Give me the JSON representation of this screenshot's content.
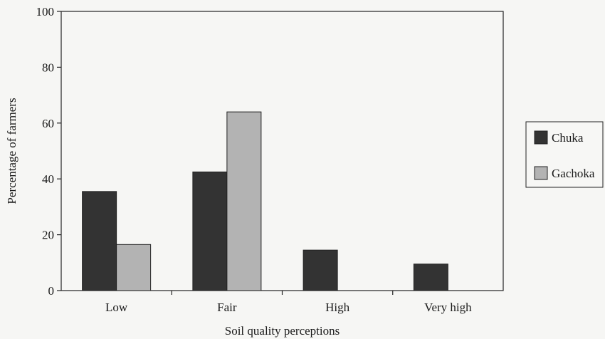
{
  "chart_data": {
    "type": "bar",
    "categories": [
      "Low",
      "Fair",
      "High",
      "Very high"
    ],
    "series": [
      {
        "name": "Chuka",
        "values": [
          35.5,
          42.5,
          14.5,
          9.5
        ],
        "color": "#333333"
      },
      {
        "name": "Gachoka",
        "values": [
          16.5,
          64,
          0,
          0
        ],
        "color": "#b3b3b3"
      }
    ],
    "xlabel": "Soil quality perceptions",
    "ylabel": "Percentage of farmers",
    "ylim": [
      0,
      100
    ],
    "yticks": [
      0,
      20,
      40,
      60,
      80,
      100
    ],
    "grid": false,
    "legend_position": "right"
  }
}
